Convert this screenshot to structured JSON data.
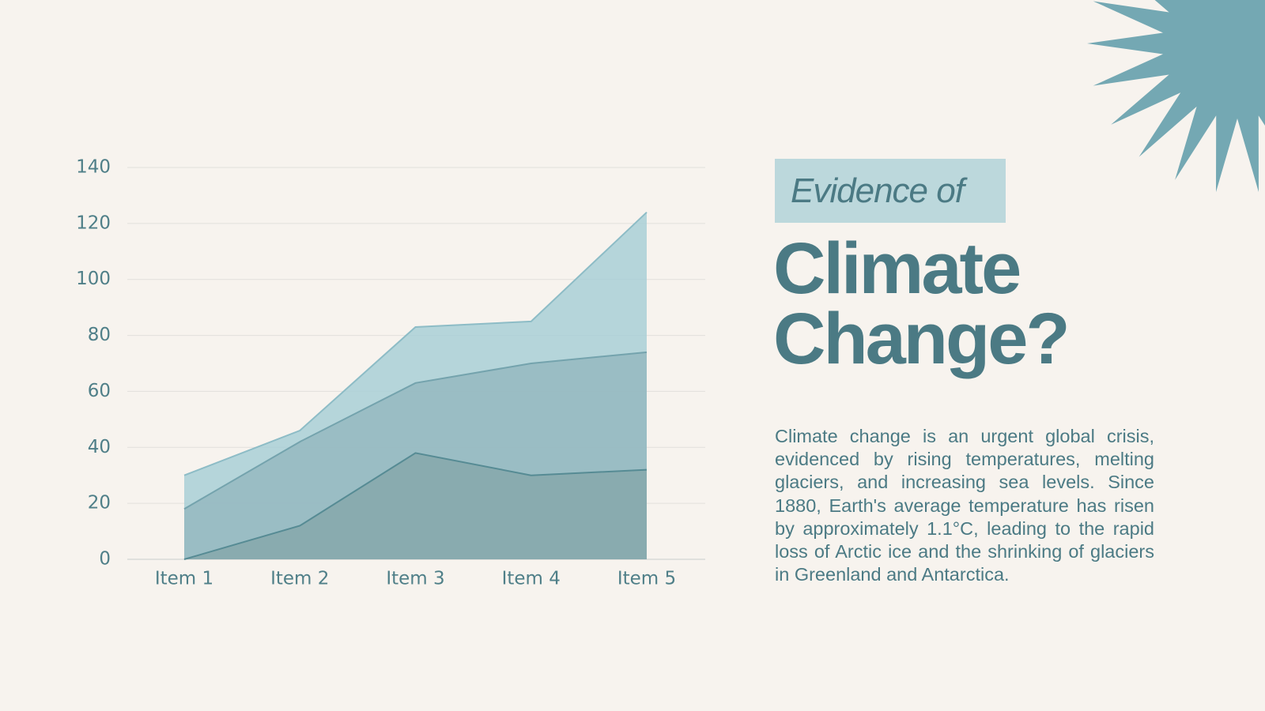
{
  "chart_data": {
    "type": "area",
    "categories": [
      "Item 1",
      "Item 2",
      "Item 3",
      "Item 4",
      "Item 5"
    ],
    "series": [
      {
        "color": "#a9cfd6",
        "values": [
          30,
          46,
          83,
          85,
          124
        ]
      },
      {
        "color": "#95b9bf",
        "values": [
          18,
          42,
          63,
          70,
          74
        ]
      },
      {
        "color": "#86a8ac",
        "values": [
          0,
          12,
          38,
          30,
          32
        ]
      }
    ],
    "ylim": [
      0,
      140
    ],
    "yticks": [
      0,
      20,
      40,
      60,
      80,
      100,
      120,
      140
    ],
    "grid": true
  },
  "heading": {
    "kicker": "Evidence of",
    "title": "Climate Change?"
  },
  "body": "Climate change is an urgent global crisis, evidenced by rising temperatures, melting glaciers, and increasing sea levels. Since 1880, Earth's average temperature has risen by approximately 1.1°C, leading to the rapid loss of Arctic ice and the shrinking of glaciers in Greenland and Antarctica."
}
